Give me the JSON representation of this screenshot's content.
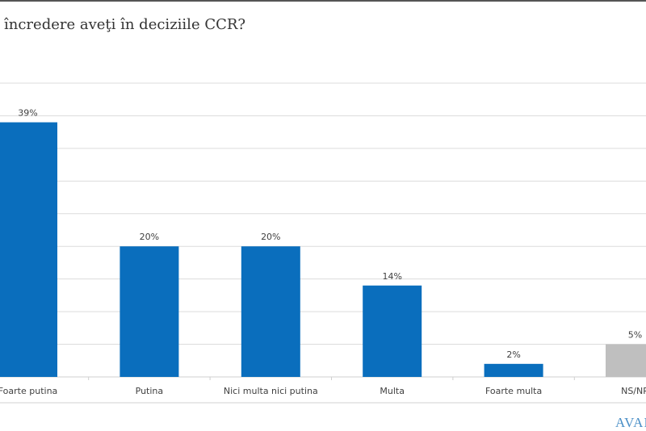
{
  "title": "încredere aveţi în deciziile CCR?",
  "logo_text": "AVAN",
  "chart_data": {
    "type": "bar",
    "title": "încredere aveţi în deciziile CCR?",
    "categories": [
      "Foarte putina",
      "Putina",
      "Nici multa nici putina",
      "Multa",
      "Foarte multa",
      "NS/NR"
    ],
    "values": [
      39,
      20,
      20,
      14,
      2,
      5
    ],
    "data_labels": [
      "39%",
      "20%",
      "20%",
      "14%",
      "2%",
      "5%"
    ],
    "colors": [
      "#0a6ebd",
      "#0a6ebd",
      "#0a6ebd",
      "#0a6ebd",
      "#0a6ebd",
      "#bfbfbf"
    ],
    "ylim": [
      0,
      45
    ],
    "grid": true,
    "legend": "none"
  }
}
